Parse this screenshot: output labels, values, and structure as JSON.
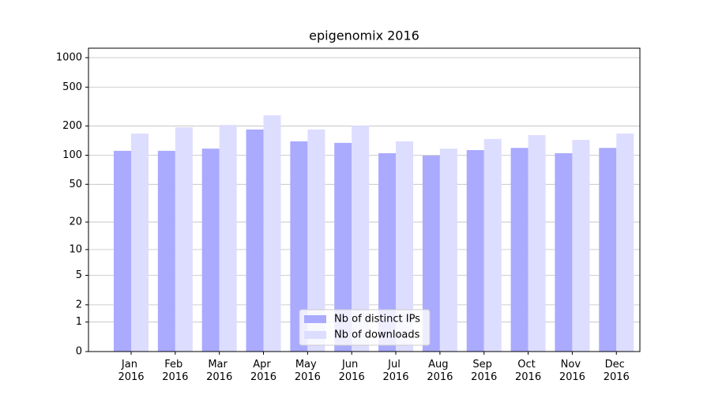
{
  "chart_data": {
    "type": "bar",
    "title": "epigenomix 2016",
    "scale": "log1p",
    "categories": [
      "Jan 2016",
      "Feb 2016",
      "Mar 2016",
      "Apr 2016",
      "May 2016",
      "Jun 2016",
      "Jul 2016",
      "Aug 2016",
      "Sep 2016",
      "Oct 2016",
      "Nov 2016",
      "Dec 2016"
    ],
    "series": [
      {
        "name": "Nb of distinct IPs",
        "color": "#aaaaff",
        "values": [
          111,
          111,
          117,
          184,
          139,
          134,
          105,
          99,
          113,
          119,
          105,
          119
        ]
      },
      {
        "name": "Nb of downloads",
        "color": "#ddddff",
        "values": [
          167,
          194,
          205,
          257,
          184,
          201,
          139,
          117,
          147,
          161,
          144,
          167
        ]
      }
    ],
    "ylim": [
      0,
      1250
    ],
    "yticks": [
      0,
      1,
      2,
      5,
      10,
      20,
      50,
      100,
      200,
      500,
      1000
    ],
    "grid": true,
    "legend": "lower center"
  }
}
